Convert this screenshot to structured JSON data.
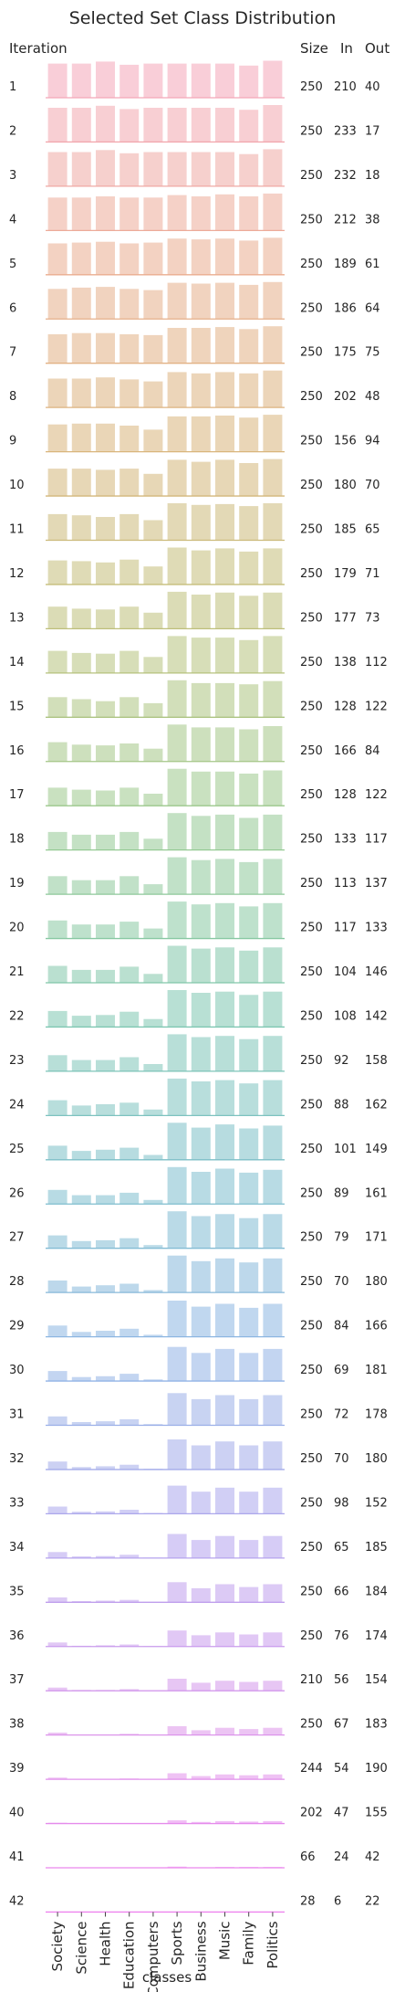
{
  "chart_data": {
    "type": "bar",
    "title": "Selected Set Class Distribution",
    "xlabel": "classes",
    "row_header": "Iteration",
    "column_headers": [
      "Size",
      "In",
      "Out"
    ],
    "categories": [
      "Society",
      "Science",
      "Health",
      "Education",
      "Computers",
      "Sports",
      "Business",
      "Music",
      "Family",
      "Politics"
    ],
    "iterations": [
      {
        "label": "1",
        "size": 250,
        "in": 210,
        "out": 40,
        "values": [
          0.85,
          0.85,
          0.9,
          0.82,
          0.85,
          0.85,
          0.85,
          0.85,
          0.8,
          0.92
        ]
      },
      {
        "label": "2",
        "size": 250,
        "in": 233,
        "out": 17,
        "values": [
          0.85,
          0.85,
          0.9,
          0.82,
          0.85,
          0.85,
          0.85,
          0.85,
          0.8,
          0.92
        ]
      },
      {
        "label": "3",
        "size": 250,
        "in": 232,
        "out": 18,
        "values": [
          0.85,
          0.85,
          0.9,
          0.82,
          0.85,
          0.85,
          0.85,
          0.85,
          0.8,
          0.92
        ]
      },
      {
        "label": "4",
        "size": 250,
        "in": 212,
        "out": 38,
        "values": [
          0.82,
          0.82,
          0.85,
          0.82,
          0.82,
          0.88,
          0.85,
          0.9,
          0.85,
          0.92
        ]
      },
      {
        "label": "5",
        "size": 250,
        "in": 189,
        "out": 61,
        "values": [
          0.78,
          0.8,
          0.82,
          0.78,
          0.8,
          0.9,
          0.88,
          0.9,
          0.85,
          0.92
        ]
      },
      {
        "label": "6",
        "size": 250,
        "in": 186,
        "out": 64,
        "values": [
          0.75,
          0.78,
          0.8,
          0.75,
          0.72,
          0.9,
          0.88,
          0.9,
          0.85,
          0.92
        ]
      },
      {
        "label": "7",
        "size": 250,
        "in": 175,
        "out": 75,
        "values": [
          0.72,
          0.75,
          0.75,
          0.72,
          0.7,
          0.88,
          0.88,
          0.9,
          0.85,
          0.92
        ]
      },
      {
        "label": "8",
        "size": 250,
        "in": 202,
        "out": 48,
        "values": [
          0.72,
          0.72,
          0.75,
          0.7,
          0.65,
          0.88,
          0.85,
          0.88,
          0.85,
          0.92
        ]
      },
      {
        "label": "9",
        "size": 250,
        "in": 156,
        "out": 94,
        "values": [
          0.68,
          0.7,
          0.7,
          0.65,
          0.55,
          0.88,
          0.88,
          0.9,
          0.85,
          0.92
        ]
      },
      {
        "label": "10",
        "size": 250,
        "in": 180,
        "out": 70,
        "values": [
          0.68,
          0.68,
          0.65,
          0.68,
          0.55,
          0.9,
          0.85,
          0.9,
          0.82,
          0.92
        ]
      },
      {
        "label": "11",
        "size": 250,
        "in": 185,
        "out": 65,
        "values": [
          0.65,
          0.62,
          0.58,
          0.65,
          0.5,
          0.92,
          0.88,
          0.9,
          0.85,
          0.92
        ]
      },
      {
        "label": "12",
        "size": 250,
        "in": 179,
        "out": 71,
        "values": [
          0.6,
          0.58,
          0.55,
          0.62,
          0.45,
          0.92,
          0.85,
          0.9,
          0.82,
          0.9
        ]
      },
      {
        "label": "13",
        "size": 250,
        "in": 177,
        "out": 73,
        "values": [
          0.55,
          0.5,
          0.48,
          0.55,
          0.4,
          0.92,
          0.85,
          0.9,
          0.82,
          0.9
        ]
      },
      {
        "label": "14",
        "size": 250,
        "in": 138,
        "out": 112,
        "values": [
          0.55,
          0.5,
          0.48,
          0.55,
          0.4,
          0.92,
          0.88,
          0.88,
          0.82,
          0.92
        ]
      },
      {
        "label": "15",
        "size": 250,
        "in": 128,
        "out": 122,
        "values": [
          0.5,
          0.45,
          0.4,
          0.5,
          0.35,
          0.92,
          0.85,
          0.85,
          0.82,
          0.9
        ]
      },
      {
        "label": "16",
        "size": 250,
        "in": 166,
        "out": 84,
        "values": [
          0.48,
          0.42,
          0.4,
          0.45,
          0.32,
          0.92,
          0.85,
          0.85,
          0.8,
          0.88
        ]
      },
      {
        "label": "17",
        "size": 250,
        "in": 128,
        "out": 122,
        "values": [
          0.45,
          0.4,
          0.38,
          0.45,
          0.3,
          0.92,
          0.85,
          0.85,
          0.8,
          0.88
        ]
      },
      {
        "label": "18",
        "size": 250,
        "in": 133,
        "out": 117,
        "values": [
          0.45,
          0.38,
          0.38,
          0.45,
          0.28,
          0.92,
          0.85,
          0.88,
          0.8,
          0.88
        ]
      },
      {
        "label": "19",
        "size": 250,
        "in": 113,
        "out": 137,
        "values": [
          0.45,
          0.35,
          0.35,
          0.45,
          0.25,
          0.92,
          0.85,
          0.88,
          0.8,
          0.88
        ]
      },
      {
        "label": "20",
        "size": 250,
        "in": 117,
        "out": 133,
        "values": [
          0.45,
          0.35,
          0.35,
          0.42,
          0.25,
          0.92,
          0.85,
          0.88,
          0.8,
          0.88
        ]
      },
      {
        "label": "21",
        "size": 250,
        "in": 104,
        "out": 146,
        "values": [
          0.42,
          0.32,
          0.32,
          0.4,
          0.22,
          0.92,
          0.85,
          0.88,
          0.8,
          0.88
        ]
      },
      {
        "label": "22",
        "size": 250,
        "in": 108,
        "out": 142,
        "values": [
          0.4,
          0.28,
          0.3,
          0.38,
          0.2,
          0.92,
          0.85,
          0.88,
          0.8,
          0.88
        ]
      },
      {
        "label": "23",
        "size": 250,
        "in": 92,
        "out": 158,
        "values": [
          0.4,
          0.28,
          0.28,
          0.35,
          0.18,
          0.92,
          0.85,
          0.88,
          0.8,
          0.88
        ]
      },
      {
        "label": "24",
        "size": 250,
        "in": 88,
        "out": 162,
        "values": [
          0.38,
          0.25,
          0.28,
          0.32,
          0.15,
          0.92,
          0.85,
          0.88,
          0.8,
          0.88
        ]
      },
      {
        "label": "25",
        "size": 250,
        "in": 101,
        "out": 149,
        "values": [
          0.35,
          0.22,
          0.25,
          0.3,
          0.12,
          0.92,
          0.8,
          0.88,
          0.78,
          0.85
        ]
      },
      {
        "label": "26",
        "size": 250,
        "in": 89,
        "out": 161,
        "values": [
          0.35,
          0.22,
          0.22,
          0.28,
          0.1,
          0.92,
          0.8,
          0.88,
          0.78,
          0.85
        ]
      },
      {
        "label": "27",
        "size": 250,
        "in": 79,
        "out": 171,
        "values": [
          0.32,
          0.18,
          0.2,
          0.25,
          0.08,
          0.92,
          0.8,
          0.85,
          0.75,
          0.85
        ]
      },
      {
        "label": "28",
        "size": 250,
        "in": 70,
        "out": 180,
        "values": [
          0.3,
          0.15,
          0.18,
          0.22,
          0.06,
          0.92,
          0.78,
          0.85,
          0.75,
          0.85
        ]
      },
      {
        "label": "29",
        "size": 250,
        "in": 84,
        "out": 166,
        "values": [
          0.28,
          0.12,
          0.15,
          0.2,
          0.05,
          0.9,
          0.75,
          0.82,
          0.72,
          0.82
        ]
      },
      {
        "label": "30",
        "size": 250,
        "in": 69,
        "out": 181,
        "values": [
          0.25,
          0.1,
          0.12,
          0.18,
          0.04,
          0.85,
          0.7,
          0.8,
          0.7,
          0.8
        ]
      },
      {
        "label": "31",
        "size": 250,
        "in": 72,
        "out": 178,
        "values": [
          0.22,
          0.08,
          0.1,
          0.15,
          0.03,
          0.8,
          0.65,
          0.75,
          0.65,
          0.75
        ]
      },
      {
        "label": "32",
        "size": 250,
        "in": 70,
        "out": 180,
        "values": [
          0.2,
          0.06,
          0.08,
          0.12,
          0.02,
          0.75,
          0.6,
          0.7,
          0.6,
          0.7
        ]
      },
      {
        "label": "33",
        "size": 250,
        "in": 98,
        "out": 152,
        "values": [
          0.18,
          0.05,
          0.06,
          0.1,
          0.02,
          0.7,
          0.55,
          0.65,
          0.55,
          0.65
        ]
      },
      {
        "label": "34",
        "size": 250,
        "in": 65,
        "out": 185,
        "values": [
          0.15,
          0.04,
          0.05,
          0.08,
          0.01,
          0.6,
          0.45,
          0.55,
          0.45,
          0.55
        ]
      },
      {
        "label": "35",
        "size": 250,
        "in": 66,
        "out": 184,
        "values": [
          0.12,
          0.03,
          0.04,
          0.06,
          0.01,
          0.5,
          0.35,
          0.45,
          0.38,
          0.45
        ]
      },
      {
        "label": "36",
        "size": 250,
        "in": 76,
        "out": 174,
        "values": [
          0.1,
          0.02,
          0.03,
          0.05,
          0.01,
          0.4,
          0.28,
          0.35,
          0.3,
          0.35
        ]
      },
      {
        "label": "37",
        "size": 210,
        "in": 56,
        "out": 154,
        "values": [
          0.08,
          0.02,
          0.02,
          0.04,
          0.01,
          0.3,
          0.2,
          0.25,
          0.22,
          0.25
        ]
      },
      {
        "label": "38",
        "size": 250,
        "in": 67,
        "out": 183,
        "values": [
          0.06,
          0.01,
          0.01,
          0.03,
          0.0,
          0.22,
          0.12,
          0.18,
          0.15,
          0.18
        ]
      },
      {
        "label": "39",
        "size": 244,
        "in": 54,
        "out": 190,
        "values": [
          0.04,
          0.01,
          0.01,
          0.02,
          0.0,
          0.15,
          0.08,
          0.12,
          0.1,
          0.12
        ]
      },
      {
        "label": "40",
        "size": 202,
        "in": 47,
        "out": 155,
        "values": [
          0.02,
          0.0,
          0.0,
          0.01,
          0.0,
          0.08,
          0.04,
          0.06,
          0.05,
          0.06
        ]
      },
      {
        "label": "41",
        "size": 66,
        "in": 24,
        "out": 42,
        "values": [
          0.01,
          0.0,
          0.0,
          0.0,
          0.0,
          0.03,
          0.01,
          0.02,
          0.02,
          0.02
        ]
      },
      {
        "label": "42",
        "size": 28,
        "in": 6,
        "out": 22,
        "values": [
          0.0,
          0.0,
          0.0,
          0.0,
          0.0,
          0.01,
          0.0,
          0.0,
          0.0,
          0.01
        ]
      }
    ],
    "grid": false,
    "legend": "none",
    "palette": {
      "start": "#f4a6b8",
      "end": "#ee82ee"
    }
  }
}
